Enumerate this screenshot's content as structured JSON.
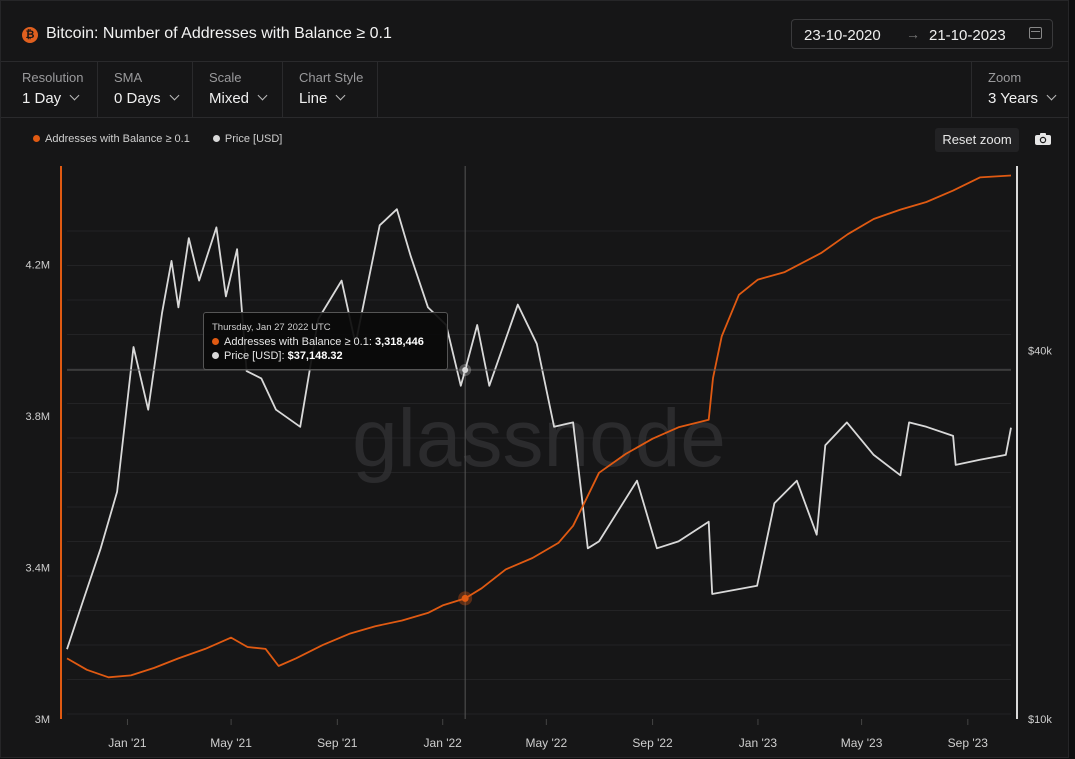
{
  "header": {
    "icon": "bitcoin-icon",
    "title": "Bitcoin: Number of Addresses with Balance ≥ 0.1",
    "date_start": "23-10-2020",
    "date_arrow": "→",
    "date_end": "21-10-2023"
  },
  "controls": {
    "resolution": {
      "label": "Resolution",
      "value": "1 Day"
    },
    "sma": {
      "label": "SMA",
      "value": "0 Days"
    },
    "scale": {
      "label": "Scale",
      "value": "Mixed"
    },
    "chart_style": {
      "label": "Chart Style",
      "value": "Line"
    },
    "zoom": {
      "label": "Zoom",
      "value": "3 Years"
    }
  },
  "toolbar": {
    "reset_zoom": "Reset zoom",
    "camera_icon": "camera-icon"
  },
  "legend": [
    {
      "label": "Addresses with Balance ≥ 0.1",
      "color": "#e05a12"
    },
    {
      "label": "Price [USD]",
      "color": "#d9d9d9"
    }
  ],
  "watermark": "glassnode",
  "tooltip": {
    "date": "Thursday, Jan 27 2022 UTC",
    "row1_label": "Addresses with Balance ≥ 0.1:",
    "row1_value": "3,318,446",
    "row2_label": "Price [USD]:",
    "row2_value": "$37,148.32"
  },
  "colors": {
    "addresses": "#e05a12",
    "price": "#d9d9d9",
    "background": "#161617",
    "grid": "#2a2a2c"
  },
  "chart_data": {
    "type": "line",
    "x_range": [
      "2020-10-23",
      "2023-10-21"
    ],
    "x_ticks": [
      "Jan '21",
      "May '21",
      "Sep '21",
      "Jan '22",
      "May '22",
      "Sep '22",
      "Jan '23",
      "May '23",
      "Sep '23"
    ],
    "y_left": {
      "ticks": [
        "3M",
        "3.4M",
        "3.8M",
        "4.2M"
      ],
      "tick_values": [
        3000000,
        3400000,
        3800000,
        4200000
      ],
      "ylim": [
        3000000,
        4460000
      ]
    },
    "y_right": {
      "ticks": [
        "$10k",
        "$40k"
      ],
      "tick_values": [
        10000,
        40000
      ],
      "scale": "log",
      "ylim": [
        10000,
        80000
      ]
    },
    "grid": true,
    "legend_position": "top-left",
    "series": [
      {
        "name": "Addresses with Balance ≥ 0.1",
        "axis": "left",
        "points": [
          [
            "2020-10-23",
            3160000
          ],
          [
            "2020-11-15",
            3130000
          ],
          [
            "2020-12-10",
            3110000
          ],
          [
            "2021-01-05",
            3115000
          ],
          [
            "2021-02-01",
            3135000
          ],
          [
            "2021-03-01",
            3160000
          ],
          [
            "2021-04-01",
            3185000
          ],
          [
            "2021-05-01",
            3215000
          ],
          [
            "2021-05-20",
            3190000
          ],
          [
            "2021-06-10",
            3185000
          ],
          [
            "2021-06-25",
            3140000
          ],
          [
            "2021-07-15",
            3160000
          ],
          [
            "2021-08-15",
            3195000
          ],
          [
            "2021-09-15",
            3225000
          ],
          [
            "2021-10-15",
            3245000
          ],
          [
            "2021-11-15",
            3260000
          ],
          [
            "2021-12-15",
            3280000
          ],
          [
            "2022-01-01",
            3300000
          ],
          [
            "2022-01-27",
            3318446
          ],
          [
            "2022-02-15",
            3345000
          ],
          [
            "2022-03-15",
            3395000
          ],
          [
            "2022-04-15",
            3425000
          ],
          [
            "2022-05-15",
            3465000
          ],
          [
            "2022-06-01",
            3510000
          ],
          [
            "2022-06-15",
            3575000
          ],
          [
            "2022-07-01",
            3650000
          ],
          [
            "2022-08-01",
            3700000
          ],
          [
            "2022-09-01",
            3740000
          ],
          [
            "2022-10-01",
            3770000
          ],
          [
            "2022-11-05",
            3790000
          ],
          [
            "2022-11-10",
            3900000
          ],
          [
            "2022-11-20",
            4010000
          ],
          [
            "2022-12-10",
            4120000
          ],
          [
            "2023-01-01",
            4160000
          ],
          [
            "2023-02-01",
            4180000
          ],
          [
            "2023-03-15",
            4230000
          ],
          [
            "2023-04-15",
            4280000
          ],
          [
            "2023-05-15",
            4320000
          ],
          [
            "2023-06-15",
            4345000
          ],
          [
            "2023-07-15",
            4365000
          ],
          [
            "2023-08-15",
            4395000
          ],
          [
            "2023-09-15",
            4430000
          ],
          [
            "2023-10-21",
            4435000
          ]
        ]
      },
      {
        "name": "Price [USD]",
        "axis": "right",
        "points": [
          [
            "2020-10-23",
            13000
          ],
          [
            "2020-11-10",
            15500
          ],
          [
            "2020-12-01",
            19000
          ],
          [
            "2020-12-20",
            23500
          ],
          [
            "2021-01-08",
            40500
          ],
          [
            "2021-01-25",
            32000
          ],
          [
            "2021-02-10",
            46000
          ],
          [
            "2021-02-21",
            56000
          ],
          [
            "2021-03-01",
            47000
          ],
          [
            "2021-03-13",
            61000
          ],
          [
            "2021-03-25",
            52000
          ],
          [
            "2021-04-14",
            63500
          ],
          [
            "2021-04-25",
            49000
          ],
          [
            "2021-05-08",
            58500
          ],
          [
            "2021-05-19",
            37000
          ],
          [
            "2021-06-05",
            36000
          ],
          [
            "2021-06-22",
            32000
          ],
          [
            "2021-07-20",
            30000
          ],
          [
            "2021-08-10",
            45000
          ],
          [
            "2021-09-06",
            52000
          ],
          [
            "2021-09-22",
            41000
          ],
          [
            "2021-10-20",
            64000
          ],
          [
            "2021-11-09",
            68000
          ],
          [
            "2021-11-25",
            57000
          ],
          [
            "2021-12-15",
            47000
          ],
          [
            "2022-01-05",
            44000
          ],
          [
            "2022-01-22",
            35000
          ],
          [
            "2022-01-27",
            37148
          ],
          [
            "2022-02-10",
            44000
          ],
          [
            "2022-02-24",
            35000
          ],
          [
            "2022-03-29",
            47500
          ],
          [
            "2022-04-20",
            41000
          ],
          [
            "2022-05-10",
            30000
          ],
          [
            "2022-06-01",
            30500
          ],
          [
            "2022-06-18",
            19000
          ],
          [
            "2022-07-01",
            19500
          ],
          [
            "2022-08-14",
            24500
          ],
          [
            "2022-09-06",
            19000
          ],
          [
            "2022-10-01",
            19500
          ],
          [
            "2022-11-05",
            21000
          ],
          [
            "2022-11-09",
            16000
          ],
          [
            "2022-12-31",
            16500
          ],
          [
            "2023-01-20",
            22500
          ],
          [
            "2023-02-15",
            24500
          ],
          [
            "2023-03-10",
            20000
          ],
          [
            "2023-03-20",
            28000
          ],
          [
            "2023-04-14",
            30500
          ],
          [
            "2023-05-15",
            27000
          ],
          [
            "2023-06-15",
            25000
          ],
          [
            "2023-06-25",
            30500
          ],
          [
            "2023-07-15",
            30000
          ],
          [
            "2023-08-15",
            29000
          ],
          [
            "2023-08-18",
            26000
          ],
          [
            "2023-09-15",
            26500
          ],
          [
            "2023-10-15",
            27000
          ],
          [
            "2023-10-21",
            29900
          ]
        ]
      }
    ],
    "tooltip_point": {
      "x": "2022-01-27",
      "address_value": 3318446,
      "price_value": 37148.32
    }
  }
}
